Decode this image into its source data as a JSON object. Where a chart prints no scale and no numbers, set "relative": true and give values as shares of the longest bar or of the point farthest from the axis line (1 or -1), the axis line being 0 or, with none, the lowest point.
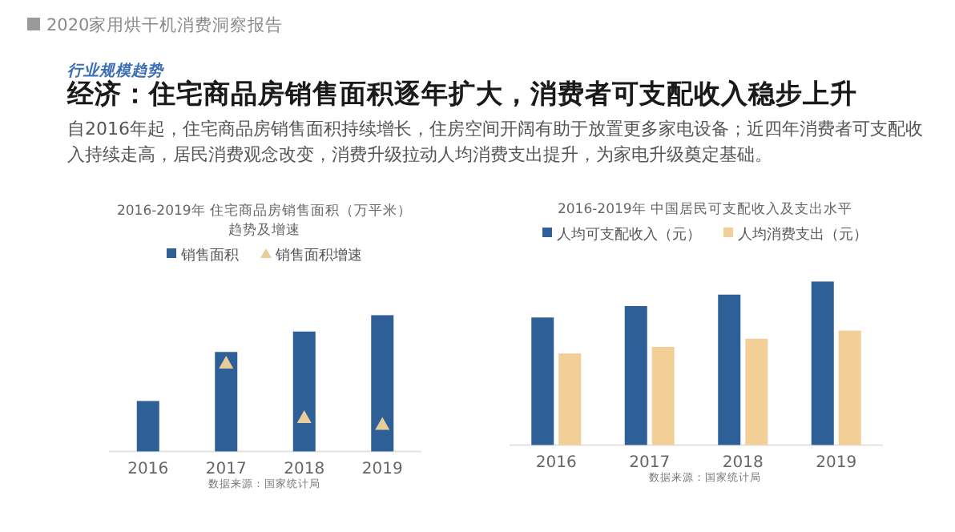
{
  "chart_data": [
    {
      "type": "other",
      "title": "经济：住宅商品房销售面积逐年扩大，消费者可支配收入稳步上升",
      "subtitle": "自2016年起，住宅商品房销售面积持续增长，住房空间开阔有助于放置更多家电设备；近四年消费者可支配收入持续走高，居民消费观念改变，消费升级拉动人均消费支出提升，为家电升级奠定基础。",
      "annotations": [
        "2020家用烘干机消费洞察报告",
        "行业规模趋势"
      ]
    },
    {
      "type": "bar",
      "title": "2016-2019年 住宅商品房销售面积（万平米）趋势及增速",
      "relative": true,
      "legend": "top",
      "categories": [
        "2016",
        "2017",
        "2018",
        "2019"
      ],
      "series": [
        {
          "name": "销售面积",
          "color": "#2e5f97",
          "values": [
            0.37,
            0.73,
            0.88,
            1
          ]
        },
        {
          "name": "销售面积增速",
          "type": "scatter",
          "marker": "triangle",
          "color": "#e8cc9a",
          "values": [
            null,
            0.65,
            0.25,
            0.2
          ]
        }
      ],
      "annotations": [
        "数据来源：国家统计局"
      ]
    },
    {
      "type": "bar",
      "title": "2016-2019年 中国居民可支配收入及支出水平",
      "relative": true,
      "legend": "top",
      "categories": [
        "2016",
        "2017",
        "2018",
        "2019"
      ],
      "series": [
        {
          "name": "人均可支配收入（元）",
          "color": "#2e5f97",
          "values": [
            0.78,
            0.85,
            0.92,
            1
          ]
        },
        {
          "name": "人均消费支出（元）",
          "color": "#f3cf98",
          "values": [
            0.56,
            0.6,
            0.65,
            0.7
          ]
        }
      ],
      "annotations": [
        "数据来源：国家统计局"
      ]
    }
  ]
}
